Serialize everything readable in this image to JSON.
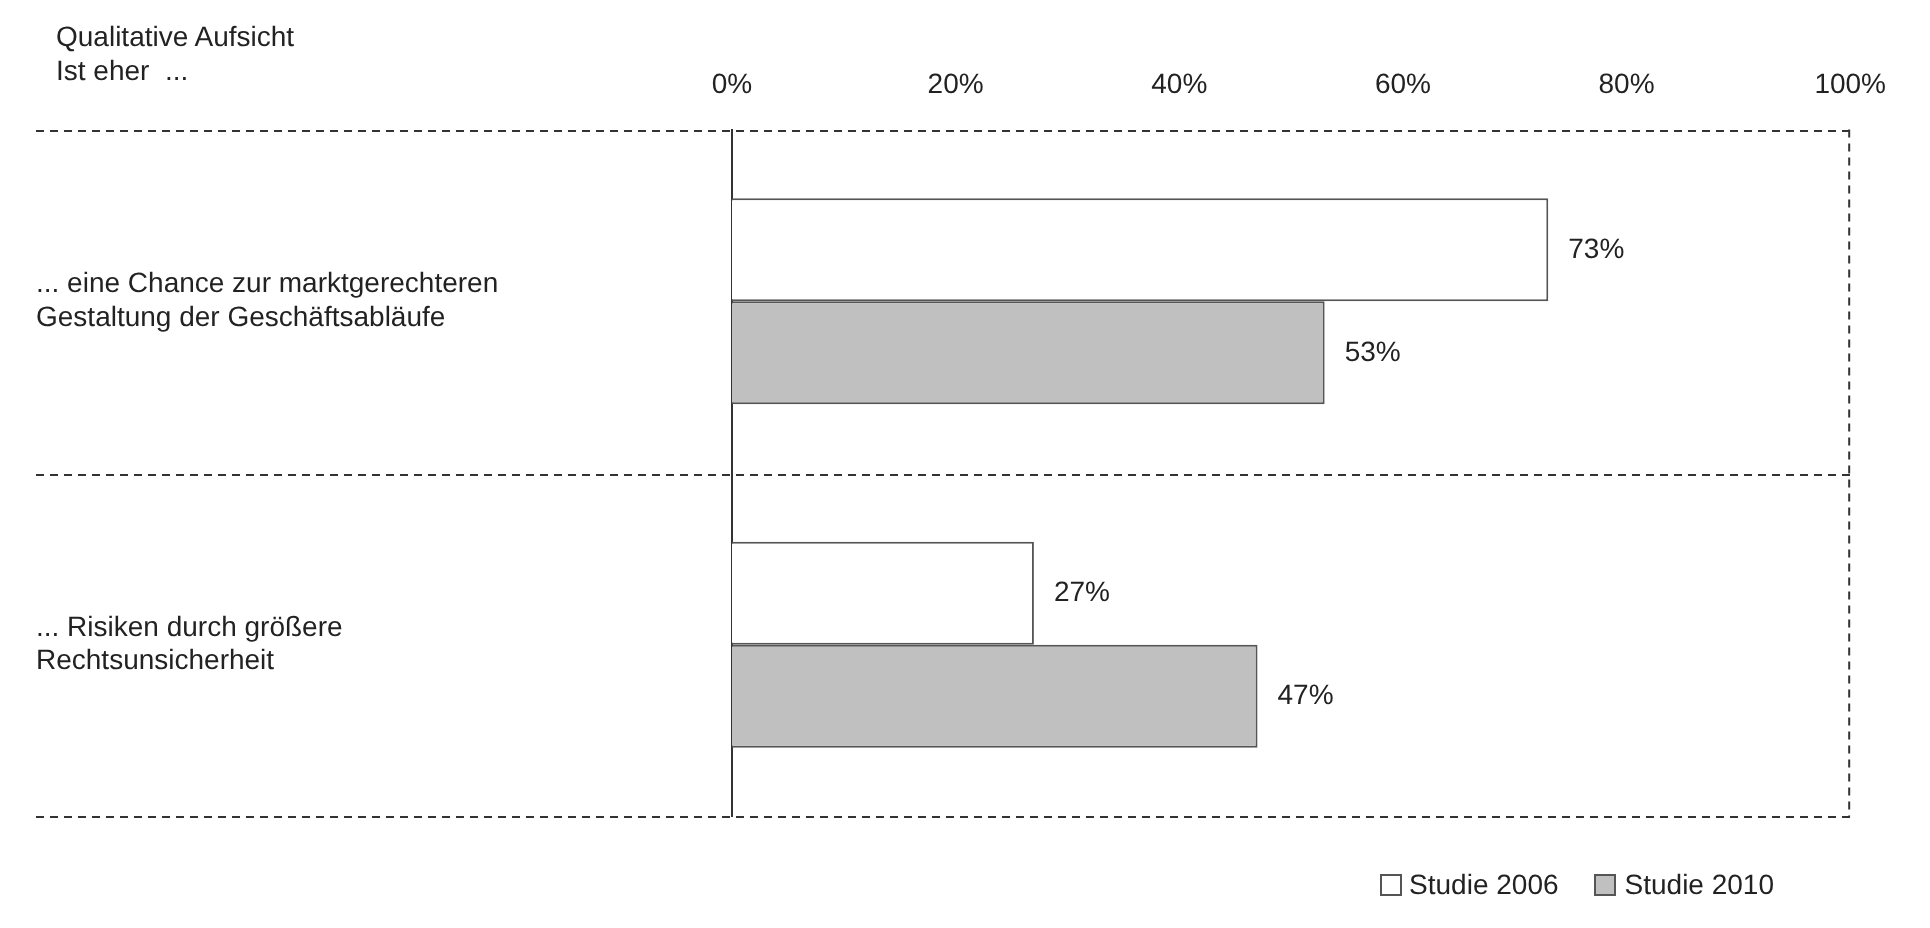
{
  "chart_data": {
    "type": "bar",
    "orientation": "horizontal",
    "title": "Qualitative Aufsicht\nIst eher  ...",
    "categories": [
      "... eine Chance zur marktgerechteren\nGestaltung der Geschäftsabläufe",
      "... Risiken durch größere\nRechtsunsicherheit"
    ],
    "series": [
      {
        "name": "Studie 2006",
        "color": "#ffffff",
        "values": [
          73,
          27
        ],
        "value_labels": [
          "73%",
          "27%"
        ]
      },
      {
        "name": "Studie 2010",
        "color": "#c0c0c0",
        "values": [
          53,
          47
        ],
        "value_labels": [
          "53%",
          "47%"
        ]
      }
    ],
    "xlim": [
      0,
      100
    ],
    "xticks": [
      {
        "value": 0,
        "label": "0%"
      },
      {
        "value": 20,
        "label": "20%"
      },
      {
        "value": 40,
        "label": "40%"
      },
      {
        "value": 60,
        "label": "60%"
      },
      {
        "value": 80,
        "label": "80%"
      },
      {
        "value": 100,
        "label": "100%"
      }
    ],
    "legend": "bottom",
    "grid": false
  }
}
